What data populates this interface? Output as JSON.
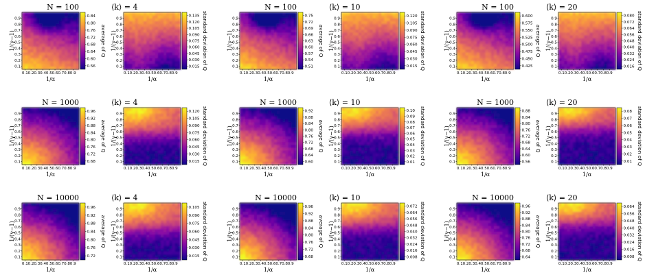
{
  "chart_data": {
    "type": "heatmap",
    "colormap": "plasma",
    "x_ticks": [
      "0.1",
      "0.2",
      "0.3",
      "0.4",
      "0.5",
      "0.6",
      "0.7",
      "0.8",
      "0.9"
    ],
    "y_ticks": [
      "0.1",
      "0.2",
      "0.3",
      "0.4",
      "0.5",
      "0.6",
      "0.7",
      "0.8",
      "0.9"
    ],
    "xlabel": "1/α",
    "ylabel": "1/(γ−1)",
    "colorbar_label_avg": "average of Q",
    "colorbar_label_std": "standard deviation of Q",
    "rows": [
      {
        "N_label": "N = 100",
        "groups": [
          {
            "k_label": "⟨k⟩ = 4",
            "avg_ticks": [
              "0.56",
              "0.60",
              "0.64",
              "0.68",
              "0.72",
              "0.76",
              "0.80",
              "0.84"
            ],
            "std_ticks": [
              "0.015",
              "0.030",
              "0.045",
              "0.060",
              "0.075",
              "0.090",
              "0.105",
              "0.120",
              "0.135"
            ]
          },
          {
            "k_label": "⟨k⟩ = 10",
            "avg_ticks": [
              "0.51",
              "0.54",
              "0.57",
              "0.60",
              "0.63",
              "0.66",
              "0.69",
              "0.72",
              "0.75"
            ],
            "std_ticks": [
              "0.015",
              "0.030",
              "0.045",
              "0.060",
              "0.075",
              "0.090",
              "0.105",
              "0.120"
            ]
          },
          {
            "k_label": "⟨k⟩ = 20",
            "avg_ticks": [
              "0.425",
              "0.450",
              "0.475",
              "0.500",
              "0.525",
              "0.550",
              "0.575",
              "0.600"
            ],
            "std_ticks": [
              "0.016",
              "0.024",
              "0.032",
              "0.040",
              "0.048",
              "0.056",
              "0.064",
              "0.072",
              "0.080"
            ]
          }
        ]
      },
      {
        "N_label": "N = 1000",
        "groups": [
          {
            "k_label": "⟨k⟩ = 4",
            "avg_ticks": [
              "0.68",
              "0.72",
              "0.76",
              "0.80",
              "0.84",
              "0.88",
              "0.92",
              "0.96"
            ],
            "std_ticks": [
              "0.015",
              "0.030",
              "0.045",
              "0.060",
              "0.075",
              "0.090",
              "0.105",
              "0.120"
            ]
          },
          {
            "k_label": "⟨k⟩ = 10",
            "avg_ticks": [
              "0.60",
              "0.64",
              "0.68",
              "0.72",
              "0.76",
              "0.80",
              "0.84",
              "0.88",
              "0.92"
            ],
            "std_ticks": [
              "0.01",
              "0.02",
              "0.03",
              "0.04",
              "0.05",
              "0.06",
              "0.07",
              "0.08",
              "0.09",
              "0.10"
            ]
          },
          {
            "k_label": "⟨k⟩ = 20",
            "avg_ticks": [
              "0.56",
              "0.60",
              "0.64",
              "0.68",
              "0.72",
              "0.76",
              "0.80",
              "0.84",
              "0.88"
            ],
            "std_ticks": [
              "0.01",
              "0.02",
              "0.03",
              "0.04",
              "0.05",
              "0.06",
              "0.07",
              "0.08"
            ]
          }
        ]
      },
      {
        "N_label": "N = 10000",
        "groups": [
          {
            "k_label": "⟨k⟩ = 4",
            "avg_ticks": [
              "0.72",
              "0.76",
              "0.80",
              "0.84",
              "0.88",
              "0.92",
              "0.96"
            ],
            "std_ticks": [
              "0.015",
              "0.030",
              "0.045",
              "0.060",
              "0.075",
              "0.090",
              "0.105"
            ]
          },
          {
            "k_label": "⟨k⟩ = 10",
            "avg_ticks": [
              "0.68",
              "0.72",
              "0.76",
              "0.80",
              "0.84",
              "0.88",
              "0.92",
              "0.96"
            ],
            "std_ticks": [
              "0.008",
              "0.016",
              "0.024",
              "0.032",
              "0.040",
              "0.048",
              "0.056",
              "0.064",
              "0.072"
            ]
          },
          {
            "k_label": "⟨k⟩ = 20",
            "avg_ticks": [
              "0.64",
              "0.68",
              "0.72",
              "0.76",
              "0.80",
              "0.84",
              "0.88",
              "0.92",
              "0.96"
            ],
            "std_ticks": [
              "0.008",
              "0.016",
              "0.024",
              "0.032",
              "0.040",
              "0.048",
              "0.056",
              "0.064"
            ]
          }
        ]
      }
    ],
    "grid": false
  }
}
